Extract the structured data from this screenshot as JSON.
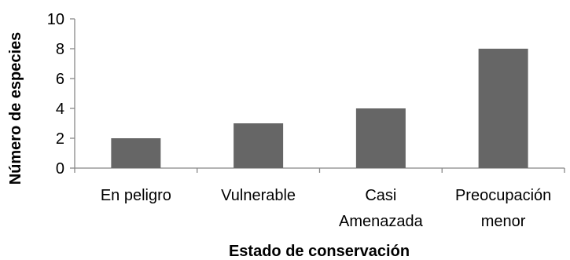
{
  "chart_data": {
    "type": "bar",
    "title": "",
    "xlabel": "Estado de conservación",
    "ylabel": "Número de especies",
    "categories": [
      [
        "En peligro"
      ],
      [
        "Vulnerable"
      ],
      [
        "Casi",
        "Amenazada"
      ],
      [
        "Preocupación",
        "menor"
      ]
    ],
    "values": [
      2,
      3,
      4,
      8
    ],
    "ylim": [
      0,
      10
    ],
    "yticks": [
      0,
      2,
      4,
      6,
      8,
      10
    ],
    "grid": false,
    "legend": "none",
    "colors": {
      "bar": "#666666",
      "axis": "#888888",
      "text": "#000000"
    }
  }
}
